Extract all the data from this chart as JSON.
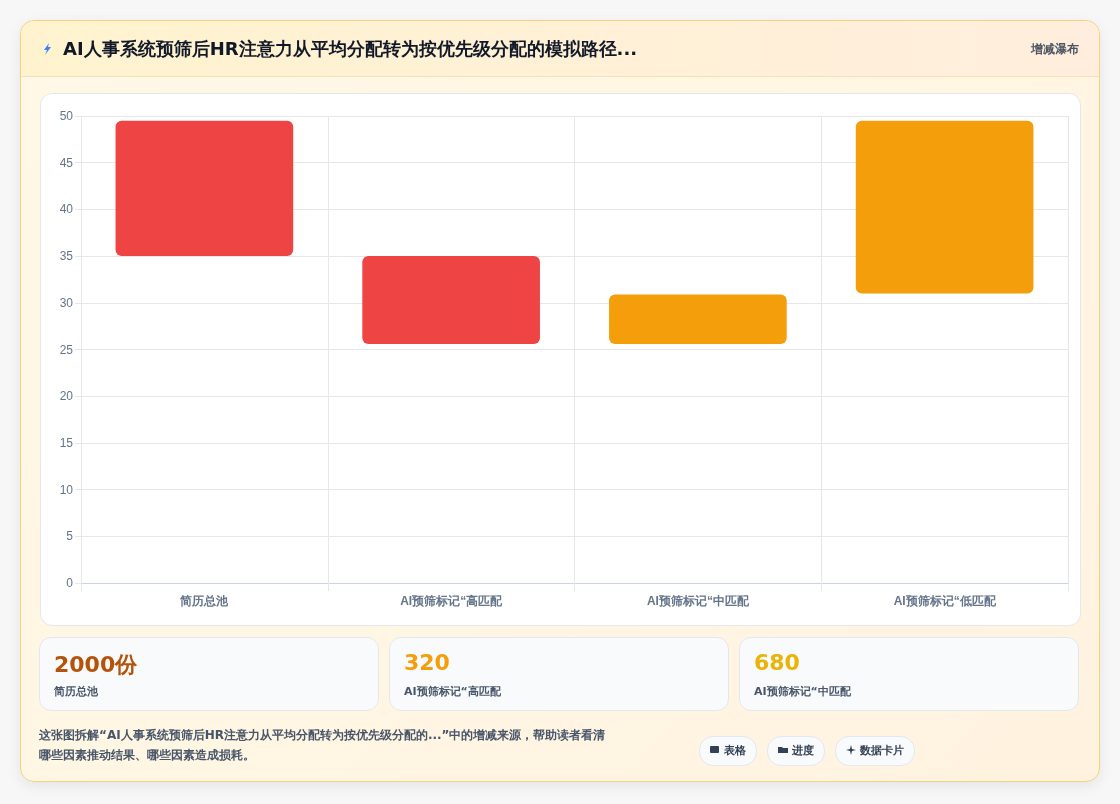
{
  "chart_data": {
    "type": "bar",
    "title": "AI人事系统预筛后HR注意力从平均分配转为按优先级分配的模拟路径...",
    "subtitle": "增减瀑布",
    "categories": [
      "简历总池",
      "AI预筛标记“高匹配",
      "AI预筛标记“中匹配",
      "AI预筛标记“低匹配"
    ],
    "values": [
      14.5,
      9.4,
      5.3,
      18.5
    ],
    "base": [
      35,
      25.6,
      25.6,
      31
    ],
    "colors": [
      "#ef4444",
      "#ef4444",
      "#f59e0b",
      "#f59e0b"
    ],
    "ylim": [
      0,
      50
    ],
    "yticks": [
      0,
      5,
      10,
      15,
      20,
      25,
      30,
      35,
      40,
      45,
      50
    ],
    "grid": true,
    "annotations": [
      "2000份",
      "简历总池",
      "320",
      "AI预筛标记“高匹配",
      "680",
      "AI预筛标记“中匹配",
      "这张图拆解“AI人事系统预筛后HR注意力从平均分配转为按优先级分配的...”中的增减来源，帮助读者看清哪些因素推动结果、哪些因素造成损耗。",
      "表格",
      "进度",
      "数据卡片"
    ]
  }
}
